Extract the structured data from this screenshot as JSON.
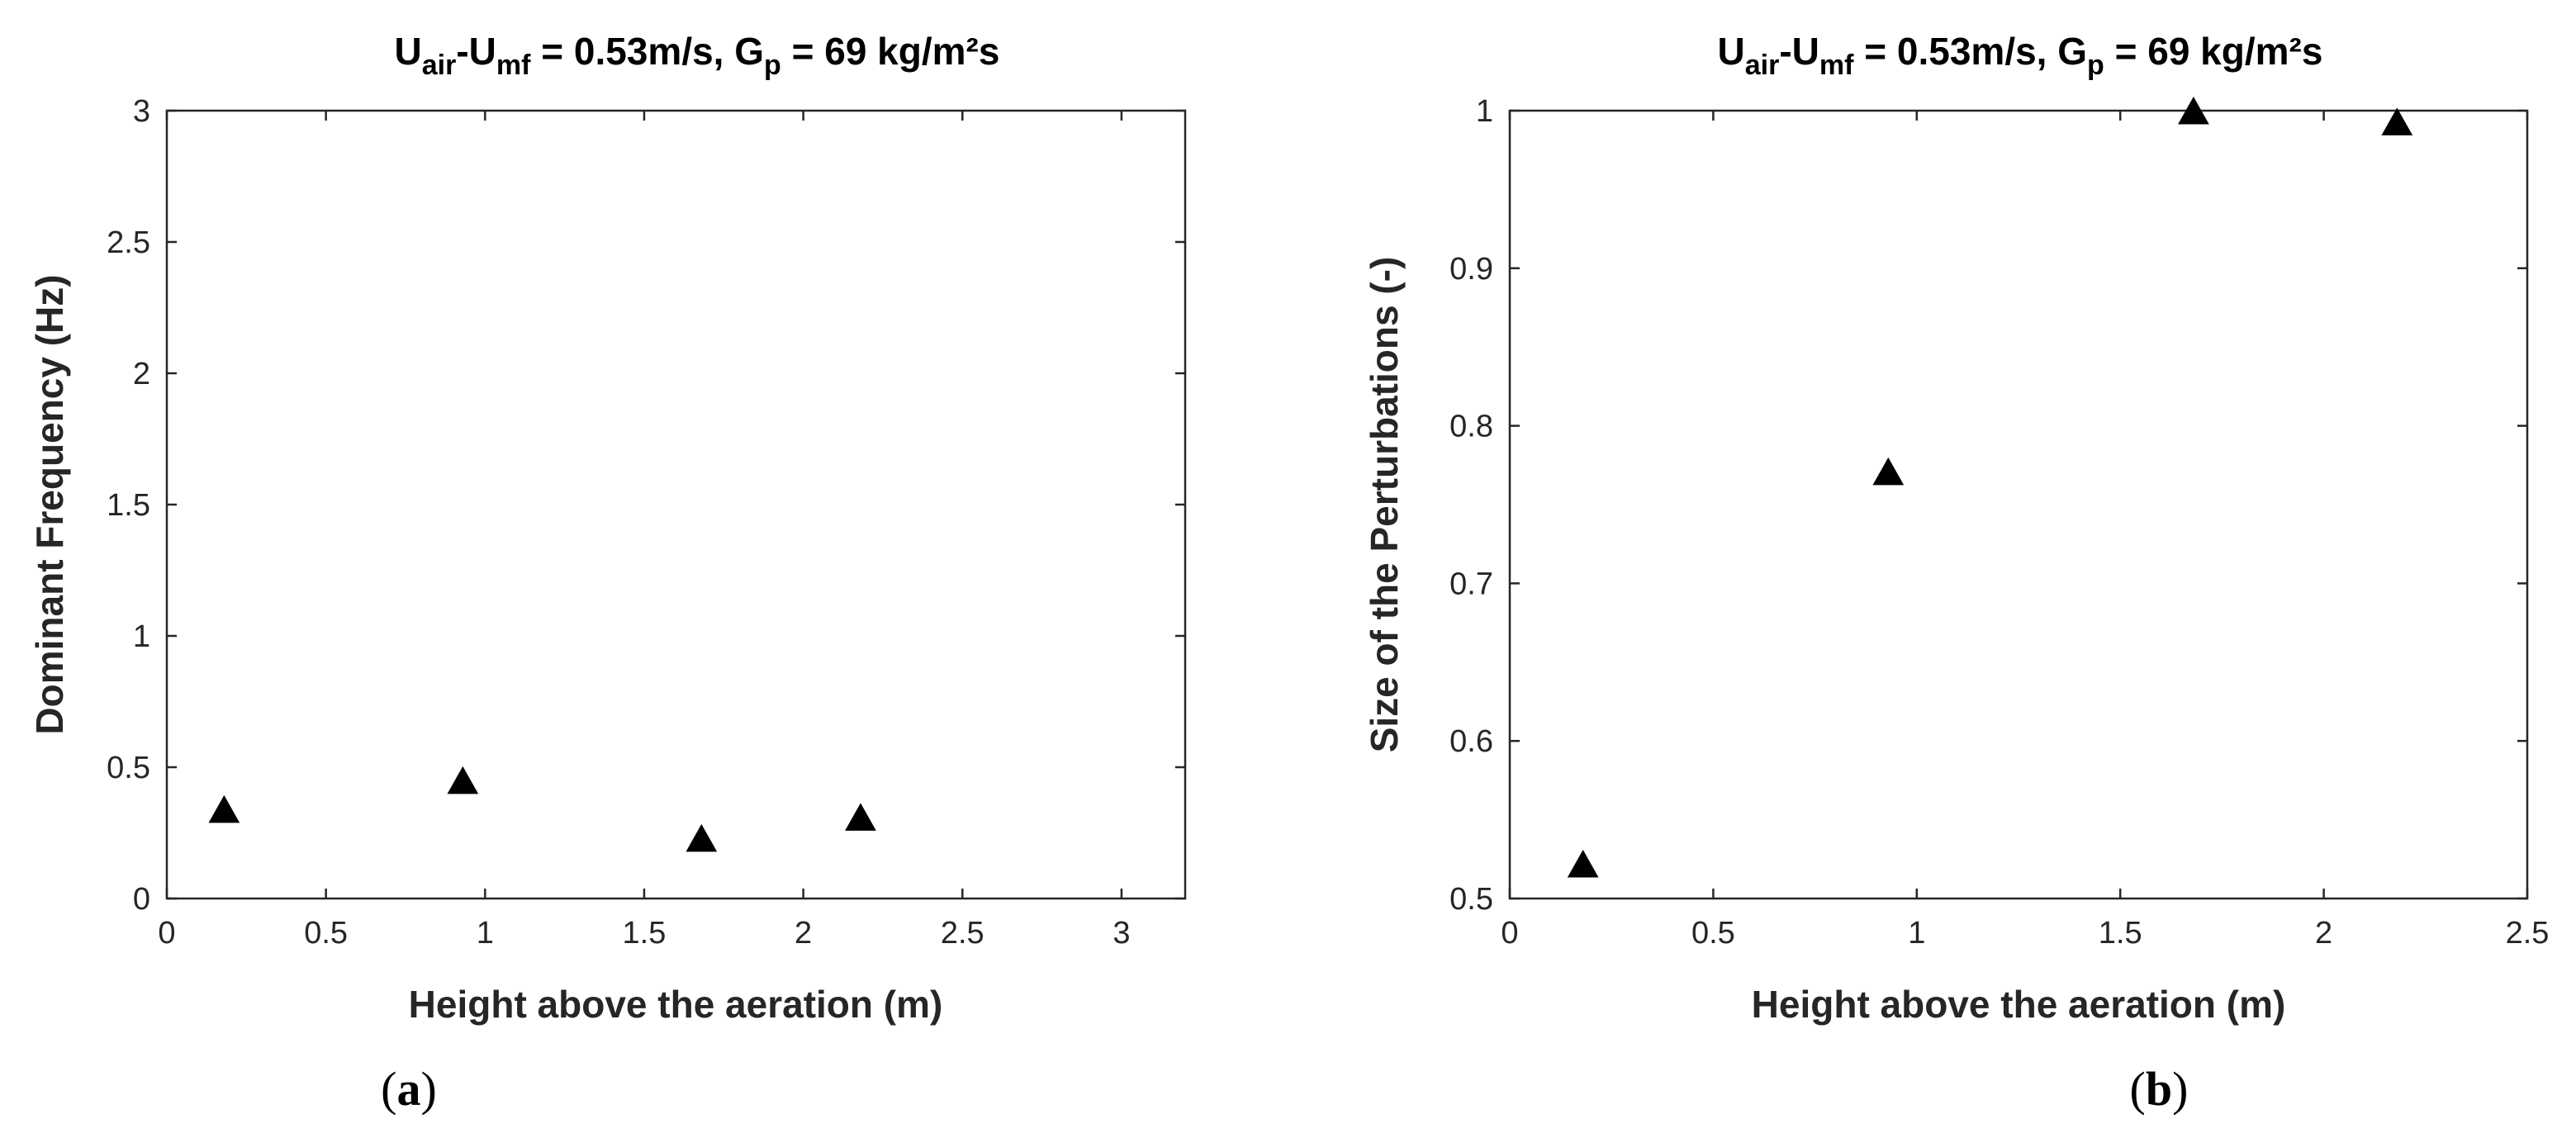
{
  "figure": {
    "panels": [
      {
        "label_open": "(",
        "label_letter": "a",
        "label_close": ")",
        "title_parts": [
          "U",
          "air",
          "-U",
          "mf",
          " = 0.53m/s, G",
          "p",
          " = 69 kg/m²s"
        ]
      },
      {
        "label_open": "(",
        "label_letter": "b",
        "label_close": ")",
        "title_parts": [
          "U",
          "air",
          "-U",
          "mf",
          " = 0.53m/s, G",
          "p",
          " = 69 kg/m²s"
        ]
      }
    ]
  },
  "chart_data": [
    {
      "type": "scatter",
      "marker": "filled-triangle",
      "marker_color": "#000000",
      "title": "Uair-Umf = 0.53m/s, Gp = 69 kg/m²s",
      "xlabel": "Height above the aeration (m)",
      "ylabel": "Dominant Frequency (Hz)",
      "xlim": [
        0,
        3.2
      ],
      "ylim": [
        0,
        3
      ],
      "xticks": [
        0,
        0.5,
        1,
        1.5,
        2,
        2.5,
        3
      ],
      "xtick_labels": [
        "0",
        "0.5",
        "1",
        "1.5",
        "2",
        "2.5",
        "3"
      ],
      "yticks": [
        0,
        0.5,
        1,
        1.5,
        2,
        2.5,
        3
      ],
      "ytick_labels": [
        "0",
        "0.5",
        "1",
        "1.5",
        "2",
        "2.5",
        "3"
      ],
      "grid": false,
      "series": [
        {
          "x": [
            0.18,
            0.93,
            1.68,
            2.18
          ],
          "y": [
            0.34,
            0.45,
            0.23,
            0.31
          ]
        }
      ]
    },
    {
      "type": "scatter",
      "marker": "filled-triangle",
      "marker_color": "#000000",
      "title": "Uair-Umf = 0.53m/s, Gp = 69 kg/m²s",
      "xlabel": "Height above the aeration (m)",
      "ylabel": "Size of the Perturbations (-)",
      "xlim": [
        0,
        2.5
      ],
      "ylim": [
        0.5,
        1
      ],
      "xticks": [
        0,
        0.5,
        1,
        1.5,
        2,
        2.5
      ],
      "xtick_labels": [
        "0",
        "0.5",
        "1",
        "1.5",
        "2",
        "2.5"
      ],
      "yticks": [
        0.5,
        0.6,
        0.7,
        0.8,
        0.9,
        1
      ],
      "ytick_labels": [
        "0.5",
        "0.6",
        "0.7",
        "0.8",
        "0.9",
        "1"
      ],
      "grid": false,
      "series": [
        {
          "x": [
            0.18,
            0.93,
            1.68,
            2.18
          ],
          "y": [
            0.522,
            0.771,
            1.0,
            0.993
          ]
        }
      ]
    }
  ]
}
